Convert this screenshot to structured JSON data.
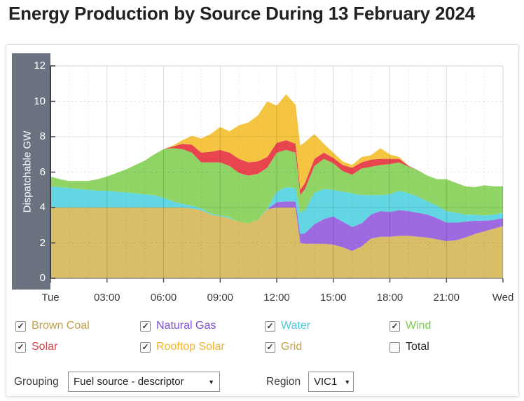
{
  "title": "Energy Production by Source During 13 February 2024",
  "y_axis": {
    "label": "Dispatchable GW",
    "ticks": [
      0,
      2,
      4,
      6,
      8,
      10,
      12
    ]
  },
  "x_axis": {
    "labels": [
      "Tue",
      "03:00",
      "06:00",
      "09:00",
      "12:00",
      "15:00",
      "18:00",
      "21:00",
      "Wed"
    ],
    "hours": [
      0,
      3,
      6,
      9,
      12,
      15,
      18,
      21,
      24
    ]
  },
  "legend": [
    {
      "label": "Brown Coal",
      "checked": true,
      "color": "#c2a04c"
    },
    {
      "label": "Natural Gas",
      "checked": true,
      "color": "#7a4ed2"
    },
    {
      "label": "Water",
      "checked": true,
      "color": "#4cc8de"
    },
    {
      "label": "Wind",
      "checked": true,
      "color": "#7ecb4f"
    },
    {
      "label": "Solar",
      "checked": true,
      "color": "#d7434c"
    },
    {
      "label": "Rooftop Solar",
      "checked": true,
      "color": "#f1b42a"
    },
    {
      "label": "Grid",
      "checked": true,
      "color": "#c2a04c"
    },
    {
      "label": "Total",
      "checked": false,
      "color": "#2b2b2b"
    }
  ],
  "controls": {
    "grouping_label": "Grouping",
    "grouping_value": "Fuel source - descriptor",
    "region_label": "Region",
    "region_value": "VIC1"
  },
  "colors": {
    "axis_band": "#6b7280",
    "panel_border": "#e0e0e0"
  },
  "chart_data": {
    "type": "area",
    "stacked": true,
    "title": "Energy Production by Source During 13 February 2024",
    "ylabel": "Dispatchable GW",
    "ylim": [
      0,
      12
    ],
    "xlim_hours": [
      0,
      24
    ],
    "grid": "on",
    "x_hours": [
      0,
      0.5,
      1,
      1.5,
      2,
      2.5,
      3,
      3.5,
      4,
      4.5,
      5,
      5.5,
      6,
      6.5,
      7,
      7.5,
      8,
      8.5,
      9,
      9.5,
      10,
      10.5,
      11,
      11.5,
      12,
      12.5,
      13,
      13.25,
      13.5,
      14,
      14.5,
      15,
      15.5,
      16,
      16.5,
      17,
      17.5,
      18,
      18.5,
      19,
      19.5,
      20,
      20.5,
      21,
      21.5,
      22,
      22.5,
      23,
      23.5,
      24
    ],
    "series": [
      {
        "name": "Brown Coal",
        "color": "#d9bd67",
        "values": [
          4,
          4,
          4,
          4,
          4,
          4,
          4,
          4,
          4,
          4,
          4,
          4,
          4,
          4,
          4,
          3.95,
          3.85,
          3.6,
          3.5,
          3.4,
          3.2,
          3.1,
          3.3,
          3.9,
          4,
          4,
          4,
          2,
          1.95,
          1.95,
          1.95,
          1.9,
          1.75,
          1.55,
          1.8,
          2.25,
          2.35,
          2.35,
          2.4,
          2.4,
          2.35,
          2.3,
          2.2,
          2.1,
          2.15,
          2.3,
          2.5,
          2.65,
          2.8,
          2.95
        ]
      },
      {
        "name": "Natural Gas",
        "color": "#9d6ae0",
        "values": [
          0,
          0,
          0,
          0,
          0,
          0,
          0,
          0,
          0,
          0,
          0,
          0,
          0,
          0,
          0,
          0,
          0,
          0,
          0,
          0,
          0,
          0,
          0,
          0,
          0.3,
          0.35,
          0.35,
          0.5,
          0.6,
          1.1,
          1.4,
          1.6,
          1.45,
          1.35,
          1.3,
          1.35,
          1.45,
          1.4,
          1.45,
          1.4,
          1.35,
          1.3,
          1.2,
          1.05,
          1,
          0.9,
          0.75,
          0.6,
          0.5,
          0.45
        ]
      },
      {
        "name": "Water",
        "color": "#62d6e3",
        "values": [
          1.2,
          1.15,
          1.1,
          1.05,
          1,
          0.95,
          0.95,
          0.9,
          0.85,
          0.8,
          0.75,
          0.7,
          0.55,
          0.35,
          0.2,
          0.15,
          0.1,
          0.05,
          0.05,
          0.05,
          0,
          0,
          0,
          0.05,
          0.6,
          0.8,
          0.75,
          1.2,
          1.3,
          1.8,
          1.7,
          1.5,
          1.7,
          1.9,
          1.6,
          1.1,
          0.9,
          1,
          1.1,
          1,
          0.9,
          0.75,
          0.7,
          0.65,
          0.55,
          0.4,
          0.35,
          0.3,
          0.3,
          0.3
        ]
      },
      {
        "name": "Wind",
        "color": "#8fd465",
        "values": [
          0.55,
          0.45,
          0.4,
          0.45,
          0.5,
          0.65,
          0.8,
          1.05,
          1.3,
          1.6,
          1.9,
          2.3,
          2.75,
          3,
          3.1,
          3,
          2.6,
          2.9,
          3,
          2.9,
          2.75,
          2.7,
          2.6,
          2.3,
          2.2,
          2.1,
          2,
          1,
          1.2,
          1.5,
          1.7,
          1.5,
          1.15,
          1.05,
          1.5,
          1.6,
          1.7,
          1.7,
          1.6,
          1.5,
          1.5,
          1.45,
          1.5,
          1.8,
          1.7,
          1.6,
          1.55,
          1.7,
          1.6,
          1.5
        ]
      },
      {
        "name": "Solar",
        "color": "#e8454f",
        "values": [
          0,
          0,
          0,
          0,
          0,
          0,
          0,
          0,
          0,
          0,
          0,
          0,
          0,
          0.1,
          0.3,
          0.45,
          0.55,
          0.6,
          0.7,
          0.75,
          0.8,
          0.75,
          0.7,
          0.6,
          0.55,
          0.55,
          0.5,
          0.3,
          0.35,
          0.4,
          0.35,
          0.3,
          0.35,
          0.4,
          0.35,
          0.4,
          0.35,
          0.3,
          0.2,
          0.05,
          0,
          0,
          0,
          0,
          0,
          0,
          0,
          0,
          0,
          0
        ]
      },
      {
        "name": "Rooftop Solar",
        "color": "#f5c542",
        "values": [
          0,
          0,
          0,
          0,
          0,
          0,
          0,
          0,
          0,
          0,
          0,
          0,
          0,
          0.05,
          0.2,
          0.5,
          0.8,
          1,
          1.3,
          1.2,
          1.9,
          2.25,
          2.6,
          3.15,
          2.1,
          2.6,
          2.2,
          2.5,
          2.3,
          1.4,
          0.5,
          0.3,
          0.2,
          0.15,
          0.3,
          0.25,
          0.6,
          0.25,
          0.1,
          0,
          0,
          0,
          0,
          0,
          0,
          0,
          0,
          0,
          0,
          0
        ]
      },
      {
        "name": "Grid",
        "color": "#d9bd67",
        "values": [
          0,
          0,
          0,
          0,
          0,
          0,
          0,
          0,
          0,
          0,
          0,
          0,
          0,
          0,
          0,
          0,
          0,
          0,
          0,
          0,
          0,
          0,
          0,
          0,
          0,
          0,
          0,
          0,
          0,
          0,
          0,
          0,
          0,
          0,
          0,
          0,
          0,
          0,
          0,
          0,
          0,
          0,
          0,
          0,
          0,
          0,
          0,
          0,
          0,
          0
        ]
      }
    ]
  }
}
